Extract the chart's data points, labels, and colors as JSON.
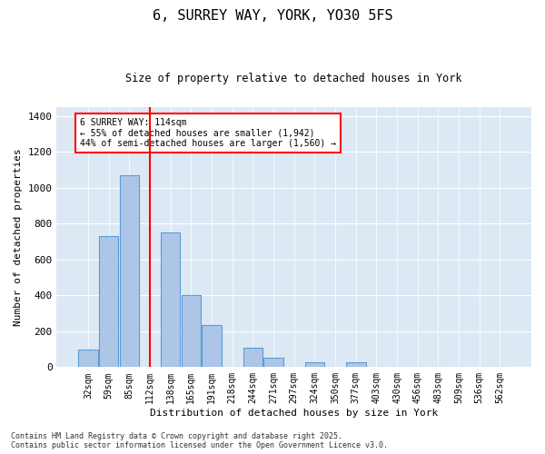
{
  "title1": "6, SURREY WAY, YORK, YO30 5FS",
  "title2": "Size of property relative to detached houses in York",
  "xlabel": "Distribution of detached houses by size in York",
  "ylabel": "Number of detached properties",
  "bar_color": "#adc6e8",
  "bar_edgecolor": "#5b9bd5",
  "background_color": "#dce9f5",
  "categories": [
    "32sqm",
    "59sqm",
    "85sqm",
    "112sqm",
    "138sqm",
    "165sqm",
    "191sqm",
    "218sqm",
    "244sqm",
    "271sqm",
    "297sqm",
    "324sqm",
    "350sqm",
    "377sqm",
    "403sqm",
    "430sqm",
    "456sqm",
    "483sqm",
    "509sqm",
    "536sqm",
    "562sqm"
  ],
  "values": [
    100,
    730,
    1070,
    0,
    750,
    400,
    235,
    0,
    110,
    50,
    0,
    25,
    0,
    25,
    0,
    0,
    0,
    0,
    0,
    0,
    0
  ],
  "red_line_index": 3,
  "annotation_text": "6 SURREY WAY: 114sqm\n← 55% of detached houses are smaller (1,942)\n44% of semi-detached houses are larger (1,560) →",
  "annotation_box_color": "white",
  "annotation_box_edgecolor": "red",
  "ylim": [
    0,
    1450
  ],
  "yticks": [
    0,
    200,
    400,
    600,
    800,
    1000,
    1200,
    1400
  ],
  "footer1": "Contains HM Land Registry data © Crown copyright and database right 2025.",
  "footer2": "Contains public sector information licensed under the Open Government Licence v3.0."
}
